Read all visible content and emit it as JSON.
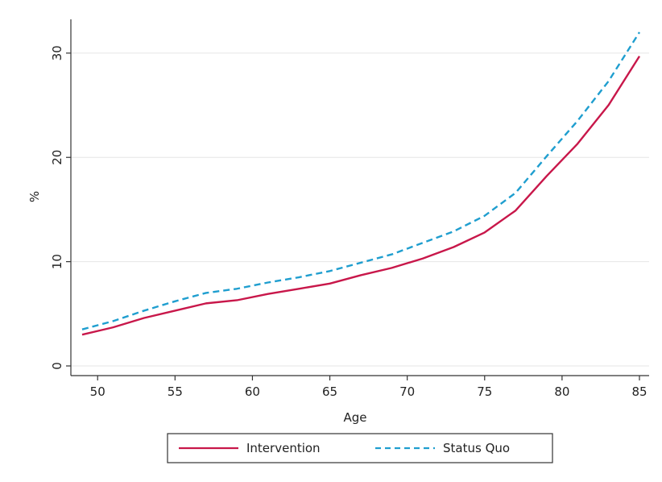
{
  "chart_data": {
    "type": "line",
    "xlabel": "Age",
    "ylabel": "%",
    "xlim": [
      49,
      85
    ],
    "ylim": [
      0,
      32
    ],
    "xticks": [
      "50",
      "55",
      "60",
      "65",
      "70",
      "75",
      "80",
      "85"
    ],
    "yticks": [
      "0",
      "10",
      "20",
      "30"
    ],
    "grid": true,
    "legend_position": "bottom",
    "x": [
      49,
      51,
      53,
      55,
      57,
      59,
      61,
      63,
      65,
      67,
      69,
      71,
      73,
      75,
      77,
      79,
      81,
      83,
      85
    ],
    "series": [
      {
        "name": "Intervention",
        "color": "#c8174a",
        "dash": "solid",
        "values": [
          3.0,
          3.7,
          4.6,
          5.3,
          6.0,
          6.3,
          6.9,
          7.4,
          7.9,
          8.7,
          9.4,
          10.3,
          11.4,
          12.8,
          14.9,
          18.2,
          21.3,
          25.0,
          29.7
        ]
      },
      {
        "name": "Status Quo",
        "color": "#1f9ecf",
        "dash": "dashed",
        "values": [
          3.5,
          4.3,
          5.3,
          6.2,
          7.0,
          7.4,
          8.0,
          8.5,
          9.1,
          9.9,
          10.7,
          11.8,
          12.9,
          14.4,
          16.6,
          20.1,
          23.5,
          27.3,
          32.0
        ]
      }
    ]
  }
}
